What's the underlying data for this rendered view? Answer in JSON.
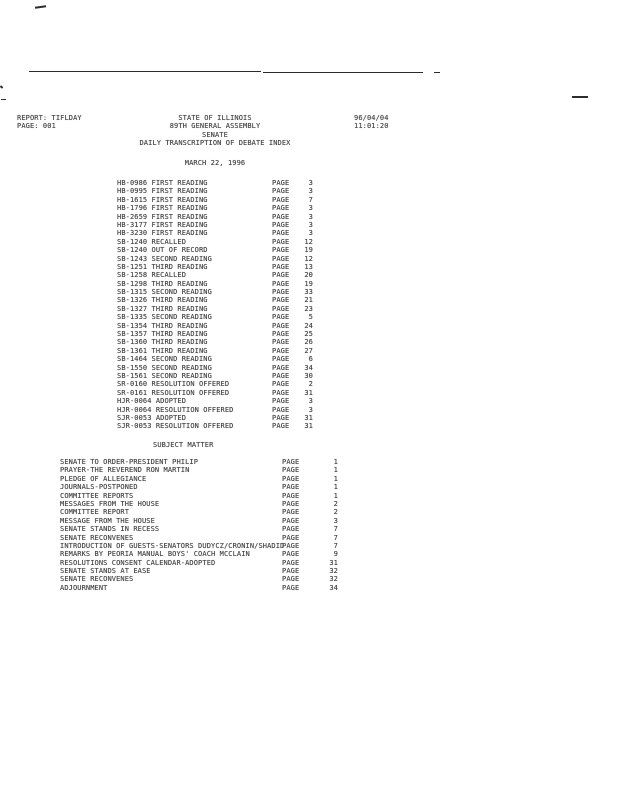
{
  "header": {
    "report_label": "REPORT: TIFLDAY",
    "page_label": "PAGE: 001",
    "title_lines": {
      "0": "STATE OF ILLINOIS",
      "1": "89TH GENERAL ASSEMBLY",
      "2": "SENATE",
      "3": "DAILY TRANSCRIPTION OF DEBATE INDEX"
    },
    "date_stamp": "96/04/04",
    "time_stamp": "11:01:20",
    "session_date": "MARCH 22, 1996"
  },
  "sections": {
    "subject_matter_title": "SUBJECT MATTER",
    "page_word": "PAGE"
  },
  "bills": [
    {
      "name": "HB-0986 FIRST READING",
      "page": "3"
    },
    {
      "name": "HB-0995 FIRST READING",
      "page": "3"
    },
    {
      "name": "HB-1615 FIRST READING",
      "page": "7"
    },
    {
      "name": "HB-1796 FIRST READING",
      "page": "3"
    },
    {
      "name": "HB-2659 FIRST READING",
      "page": "3"
    },
    {
      "name": "HB-3177 FIRST READING",
      "page": "3"
    },
    {
      "name": "HB-3230 FIRST READING",
      "page": "3"
    },
    {
      "name": "SB-1240 RECALLED",
      "page": "12"
    },
    {
      "name": "SB-1240 OUT OF RECORD",
      "page": "19"
    },
    {
      "name": "SB-1243 SECOND READING",
      "page": "12"
    },
    {
      "name": "SB-1251 THIRD READING",
      "page": "13"
    },
    {
      "name": "SB-1258 RECALLED",
      "page": "20"
    },
    {
      "name": "SB-1298 THIRD READING",
      "page": "19"
    },
    {
      "name": "SB-1315 SECOND READING",
      "page": "33"
    },
    {
      "name": "SB-1326 THIRD READING",
      "page": "21"
    },
    {
      "name": "SB-1327 THIRD READING",
      "page": "23"
    },
    {
      "name": "SB-1335 SECOND READING",
      "page": "5"
    },
    {
      "name": "SB-1354 THIRD READING",
      "page": "24"
    },
    {
      "name": "SB-1357 THIRD READING",
      "page": "25"
    },
    {
      "name": "SB-1360 THIRD READING",
      "page": "26"
    },
    {
      "name": "SB-1361 THIRD READING",
      "page": "27"
    },
    {
      "name": "SB-1464 SECOND READING",
      "page": "6"
    },
    {
      "name": "SB-1550 SECOND READING",
      "page": "34"
    },
    {
      "name": "SB-1561 SECOND READING",
      "page": "30"
    },
    {
      "name": "SR-0160 RESOLUTION OFFERED",
      "page": "2"
    },
    {
      "name": "SR-0161 RESOLUTION OFFERED",
      "page": "31"
    },
    {
      "name": "HJR-0064 ADOPTED",
      "page": "3"
    },
    {
      "name": "HJR-0064 RESOLUTION OFFERED",
      "page": "3"
    },
    {
      "name": "SJR-0053 ADOPTED",
      "page": "31"
    },
    {
      "name": "SJR-0053 RESOLUTION OFFERED",
      "page": "31"
    }
  ],
  "subjects": [
    {
      "name": "SENATE TO ORDER-PRESIDENT PHILIP",
      "page": "1"
    },
    {
      "name": "PRAYER-THE REVEREND RON MARTIN",
      "page": "1"
    },
    {
      "name": "PLEDGE OF ALLEGIANCE",
      "page": "1"
    },
    {
      "name": "JOURNALS-POSTPONED",
      "page": "1"
    },
    {
      "name": "COMMITTEE REPORTS",
      "page": "1"
    },
    {
      "name": "MESSAGES FROM THE HOUSE",
      "page": "2"
    },
    {
      "name": "COMMITTEE REPORT",
      "page": "2"
    },
    {
      "name": "MESSAGE FROM THE HOUSE",
      "page": "3"
    },
    {
      "name": "SENATE STANDS IN RECESS",
      "page": "7"
    },
    {
      "name": "SENATE RECONVENES",
      "page": "7"
    },
    {
      "name": "INTRODUCTION OF GUESTS-SENATORS DUDYCZ/CRONIN/SHADID",
      "page": "7"
    },
    {
      "name": "REMARKS BY PEORIA MANUAL BOYS' COACH MCCLAIN",
      "page": "9"
    },
    {
      "name": "RESOLUTIONS CONSENT CALENDAR-ADOPTED",
      "page": "31"
    },
    {
      "name": "SENATE STANDS AT EASE",
      "page": "32"
    },
    {
      "name": "SENATE RECONVENES",
      "page": "32"
    },
    {
      "name": "ADJOURNMENT",
      "page": "34"
    }
  ]
}
